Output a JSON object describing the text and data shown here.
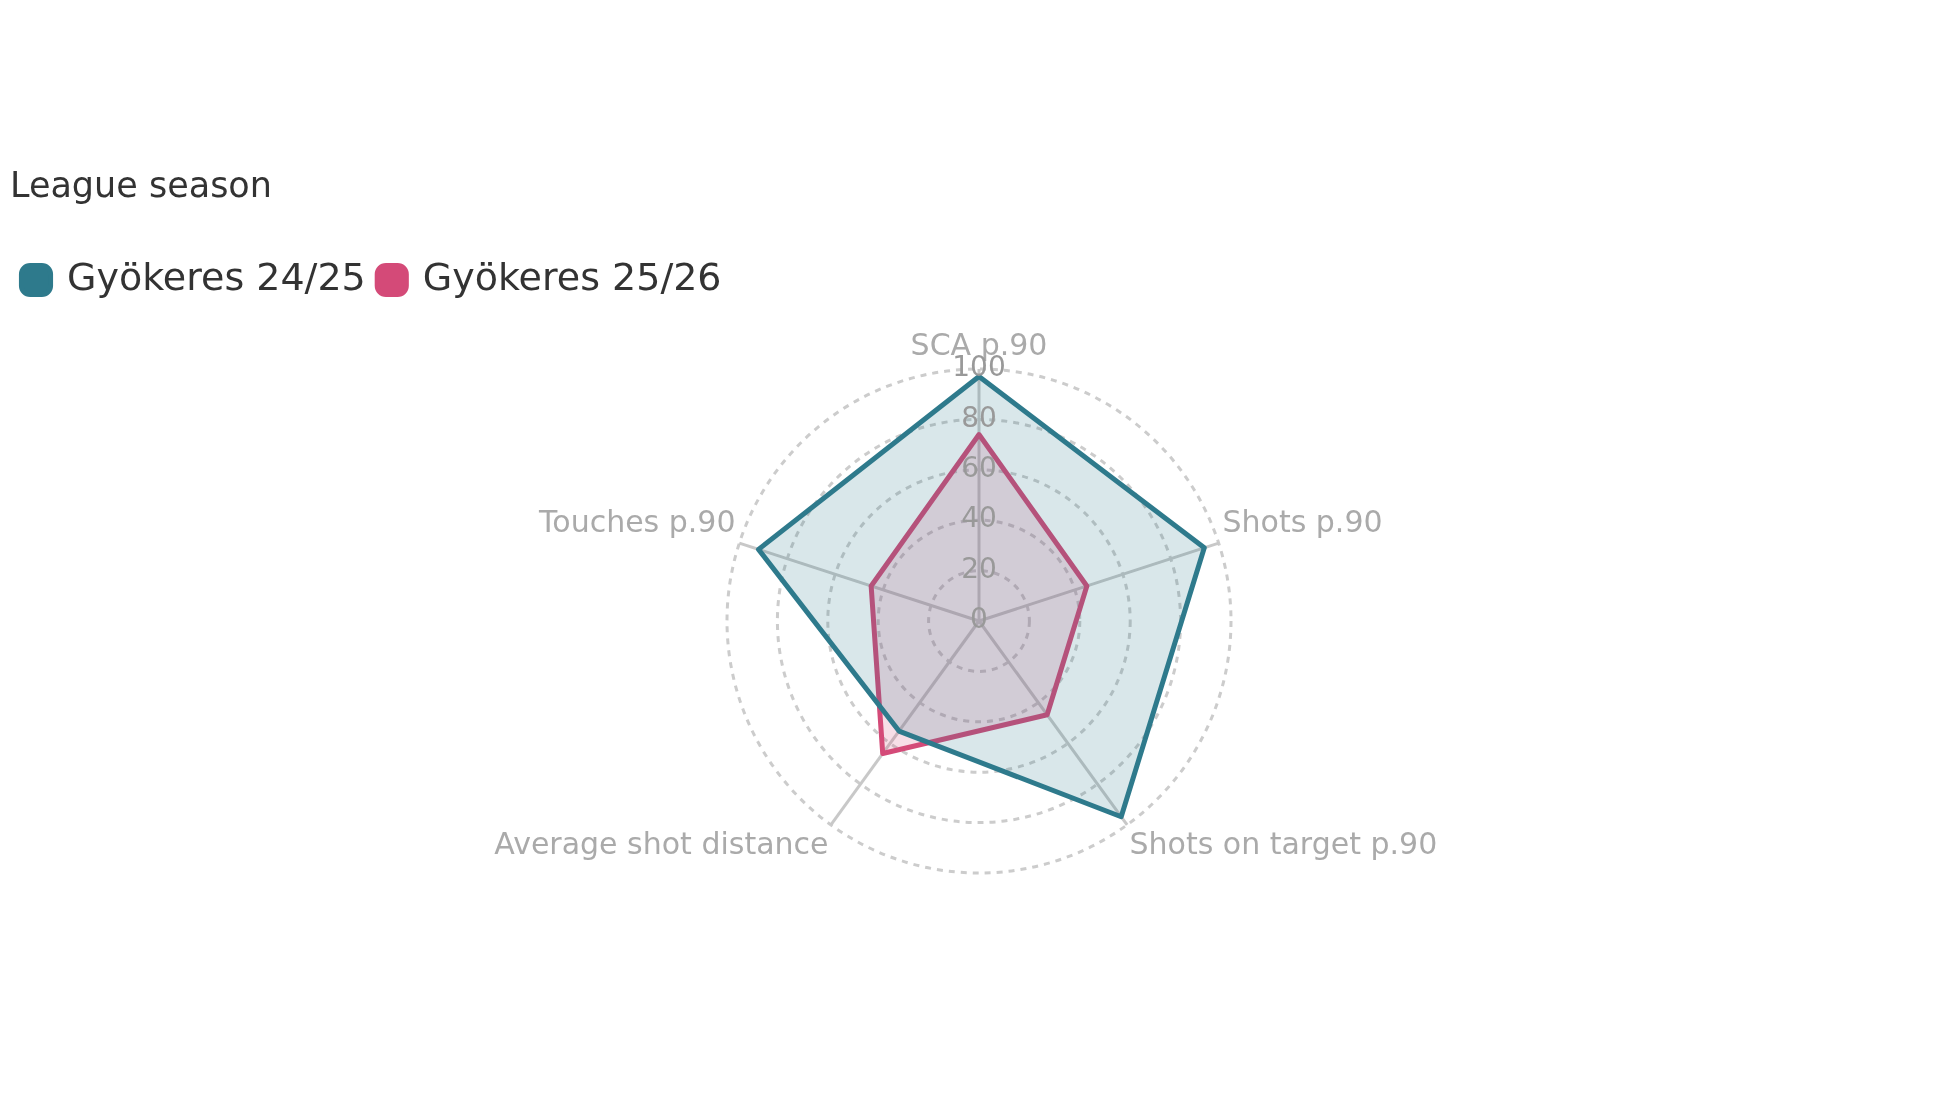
{
  "chart_data": {
    "type": "radar",
    "legend_title": "League season",
    "legend": "top left",
    "categories": [
      "SCA p.90",
      "Shots p.90",
      "Shots on target p.90",
      "Average shot distance",
      "Touches p.90"
    ],
    "ylim": [
      0,
      100
    ],
    "yticks": [
      0,
      20,
      40,
      60,
      80,
      100
    ],
    "grid": true,
    "marker": "none",
    "line_style": "solid",
    "series": [
      {
        "name": "Gyökeres 24/25",
        "color": "#2e7a8c",
        "values": [
          97,
          94,
          96,
          54,
          92
        ]
      },
      {
        "name": "Gyökeres 25/26",
        "color": "#d44a78",
        "values": [
          74,
          45,
          46,
          65,
          45
        ]
      }
    ]
  }
}
